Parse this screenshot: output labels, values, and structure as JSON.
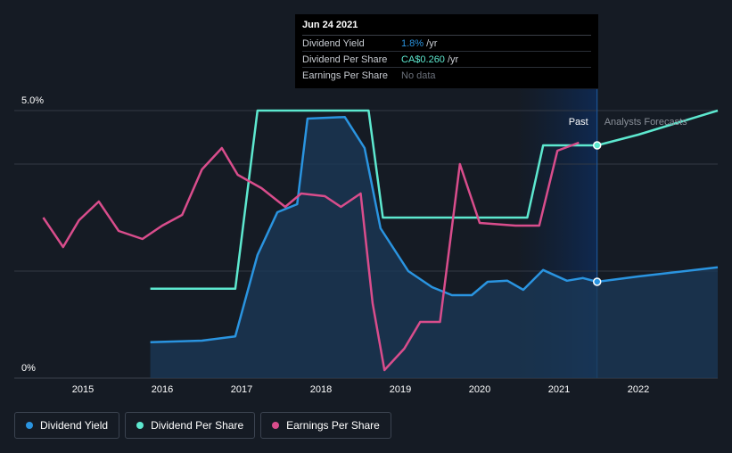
{
  "chart_data": {
    "type": "line",
    "x_axis_labels": [
      "2015",
      "2016",
      "2017",
      "2018",
      "2019",
      "2020",
      "2021",
      "2022"
    ],
    "y_axis_labels": [
      "5.0%",
      "0%"
    ],
    "ylim": [
      0,
      5
    ],
    "xlim": [
      2014.4,
      2023.0
    ],
    "regions": {
      "past_label": "Past",
      "forecast_label": "Analysts Forecasts"
    },
    "highlight_x": 2021.48,
    "series": [
      {
        "name": "Dividend Yield",
        "color": "#2a94e0",
        "filled": true,
        "points": [
          [
            2015.85,
            0.67
          ],
          [
            2016.5,
            0.7
          ],
          [
            2016.92,
            0.78
          ],
          [
            2017.2,
            2.3
          ],
          [
            2017.45,
            3.1
          ],
          [
            2017.7,
            3.25
          ],
          [
            2017.83,
            4.85
          ],
          [
            2018.3,
            4.88
          ],
          [
            2018.55,
            4.3
          ],
          [
            2018.75,
            2.8
          ],
          [
            2019.1,
            2.0
          ],
          [
            2019.4,
            1.7
          ],
          [
            2019.65,
            1.55
          ],
          [
            2019.9,
            1.55
          ],
          [
            2020.1,
            1.8
          ],
          [
            2020.35,
            1.82
          ],
          [
            2020.55,
            1.65
          ],
          [
            2020.8,
            2.02
          ],
          [
            2021.1,
            1.82
          ],
          [
            2021.3,
            1.87
          ],
          [
            2021.48,
            1.8
          ],
          [
            2022.0,
            1.9
          ],
          [
            2023.0,
            2.07
          ]
        ]
      },
      {
        "name": "Dividend Per Share",
        "color": "#5de8cf",
        "filled": false,
        "points": [
          [
            2015.85,
            1.67
          ],
          [
            2016.92,
            1.67
          ],
          [
            2017.2,
            5.0
          ],
          [
            2018.6,
            5.0
          ],
          [
            2018.78,
            3.0
          ],
          [
            2020.6,
            3.0
          ],
          [
            2020.8,
            4.35
          ],
          [
            2021.48,
            4.35
          ],
          [
            2022.0,
            4.55
          ],
          [
            2023.0,
            5.0
          ]
        ]
      },
      {
        "name": "Earnings Per Share",
        "color": "#d94d8c",
        "filled": false,
        "points": [
          [
            2014.5,
            3.0
          ],
          [
            2014.75,
            2.45
          ],
          [
            2014.95,
            2.95
          ],
          [
            2015.2,
            3.3
          ],
          [
            2015.45,
            2.75
          ],
          [
            2015.75,
            2.6
          ],
          [
            2016.0,
            2.85
          ],
          [
            2016.25,
            3.05
          ],
          [
            2016.5,
            3.9
          ],
          [
            2016.75,
            4.3
          ],
          [
            2016.95,
            3.8
          ],
          [
            2017.25,
            3.55
          ],
          [
            2017.55,
            3.2
          ],
          [
            2017.75,
            3.45
          ],
          [
            2018.05,
            3.4
          ],
          [
            2018.25,
            3.2
          ],
          [
            2018.5,
            3.45
          ],
          [
            2018.65,
            1.4
          ],
          [
            2018.8,
            0.15
          ],
          [
            2019.05,
            0.55
          ],
          [
            2019.25,
            1.05
          ],
          [
            2019.5,
            1.05
          ],
          [
            2019.75,
            4.0
          ],
          [
            2020.0,
            2.9
          ],
          [
            2020.45,
            2.85
          ],
          [
            2020.75,
            2.85
          ],
          [
            2020.98,
            4.25
          ],
          [
            2021.25,
            4.4
          ]
        ]
      }
    ]
  },
  "tooltip": {
    "date": "Jun 24 2021",
    "rows": [
      {
        "label": "Dividend Yield",
        "value": "1.8%",
        "unit": " /yr",
        "color": "#2a94e0"
      },
      {
        "label": "Dividend Per Share",
        "value": "CA$0.260",
        "unit": " /yr",
        "color": "#5de8cf"
      },
      {
        "label": "Earnings Per Share",
        "value": "No data",
        "unit": "",
        "color": "#6b717b"
      }
    ]
  },
  "legend": [
    {
      "label": "Dividend Yield",
      "color": "#2a94e0"
    },
    {
      "label": "Dividend Per Share",
      "color": "#5de8cf"
    },
    {
      "label": "Earnings Per Share",
      "color": "#d94d8c"
    }
  ]
}
